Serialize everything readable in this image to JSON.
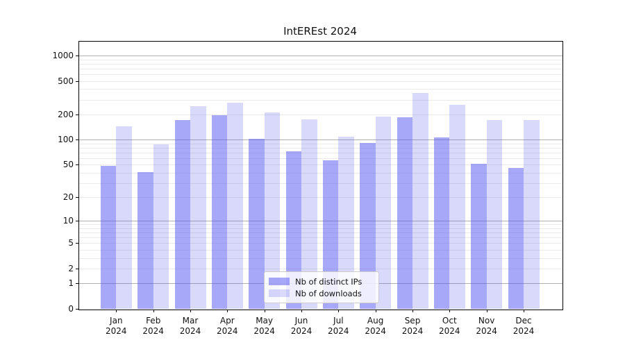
{
  "chart_title": "IntEREst 2024",
  "legend": {
    "items": [
      {
        "label": "Nb of distinct IPs"
      },
      {
        "label": "Nb of downloads"
      }
    ]
  },
  "colors": {
    "bar_dark": "rgba(81,81,241,0.5)",
    "bar_light": "rgba(81,81,241,0.22)",
    "grid_major": "#b0b0b0",
    "grid_minor": "#eaeaea",
    "axis": "#000000",
    "text": "#111111"
  },
  "chart_data": {
    "type": "bar",
    "title": "IntEREst 2024",
    "categories": [
      "Jan 2024",
      "Feb 2024",
      "Mar 2024",
      "Apr 2024",
      "May 2024",
      "Jun 2024",
      "Jul 2024",
      "Aug 2024",
      "Sep 2024",
      "Oct 2024",
      "Nov 2024",
      "Dec 2024"
    ],
    "series": [
      {
        "name": "Nb of distinct IPs",
        "values": [
          48,
          41,
          172,
          195,
          103,
          72,
          57,
          92,
          185,
          107,
          51,
          46
        ]
      },
      {
        "name": "Nb of downloads",
        "values": [
          145,
          88,
          250,
          275,
          210,
          175,
          108,
          190,
          360,
          260,
          172,
          172
        ]
      }
    ],
    "yscale": "log1p",
    "ylim": [
      0,
      1460
    ],
    "yticks": [
      1000,
      500,
      200,
      100,
      50,
      20,
      10,
      5,
      2,
      1,
      0
    ],
    "major_gridlines": [
      1,
      10,
      100,
      1000
    ],
    "minor_gridlines": [
      2,
      3,
      4,
      5,
      6,
      7,
      8,
      9,
      20,
      30,
      40,
      50,
      60,
      70,
      80,
      90,
      200,
      300,
      400,
      500,
      600,
      700,
      800,
      900
    ],
    "grid": "horizontal",
    "legend_position": "lower center",
    "xlabel": "",
    "ylabel": ""
  }
}
